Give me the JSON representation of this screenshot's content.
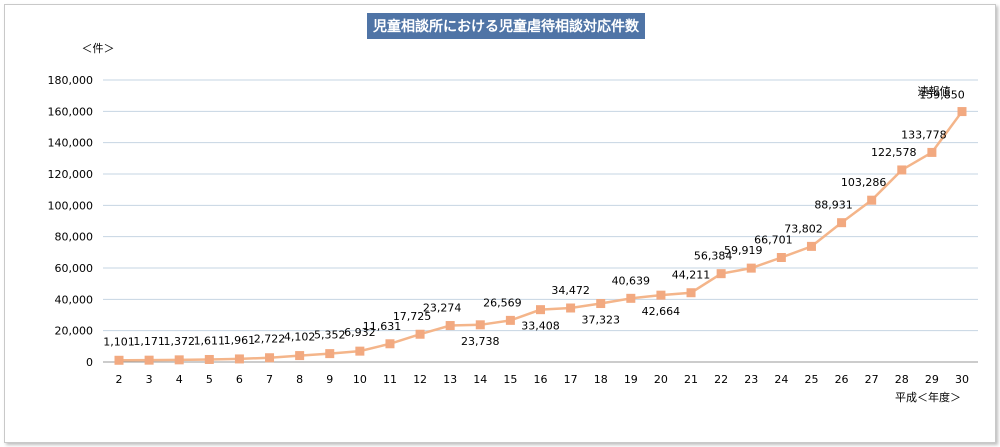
{
  "chart_data": {
    "type": "line",
    "title": "児童相談所における児童虐待相談対応件数",
    "ylabel": "＜件＞",
    "xlabel": "平成＜年度＞",
    "ylim": [
      0,
      180000
    ],
    "y_ticks": [
      "0",
      "20,000",
      "40,000",
      "60,000",
      "80,000",
      "100,000",
      "120,000",
      "140,000",
      "160,000",
      "180,000"
    ],
    "categories": [
      "2",
      "3",
      "4",
      "5",
      "6",
      "7",
      "8",
      "9",
      "10",
      "11",
      "12",
      "13",
      "14",
      "15",
      "16",
      "17",
      "18",
      "19",
      "20",
      "21",
      "22",
      "23",
      "24",
      "25",
      "26",
      "27",
      "28",
      "29",
      "30"
    ],
    "series": [
      {
        "values": [
          1101,
          1171,
          1372,
          1611,
          1961,
          2722,
          4102,
          5352,
          6932,
          11631,
          17725,
          23274,
          23738,
          26569,
          33408,
          34472,
          37323,
          40639,
          42664,
          44211,
          56384,
          59919,
          66701,
          73802,
          88931,
          103286,
          122578,
          133778,
          159850
        ],
        "labels": [
          "1,101",
          "1,171",
          "1,372",
          "1,611",
          "1,961",
          "2,722",
          "4,102",
          "5,352",
          "6,932",
          "11,631",
          "17,725",
          "23,274",
          "23,738",
          "26,569",
          "33,408",
          "34,472",
          "37,323",
          "40,639",
          "42,664",
          "44,211",
          "56,384",
          "59,919",
          "66,701",
          "73,802",
          "88,931",
          "103,286",
          "122,578",
          "133,778",
          "159,850"
        ]
      }
    ],
    "annotation": "速報値",
    "grid": true,
    "line_color": "#f4b58a",
    "marker_color": "#f2a980"
  }
}
